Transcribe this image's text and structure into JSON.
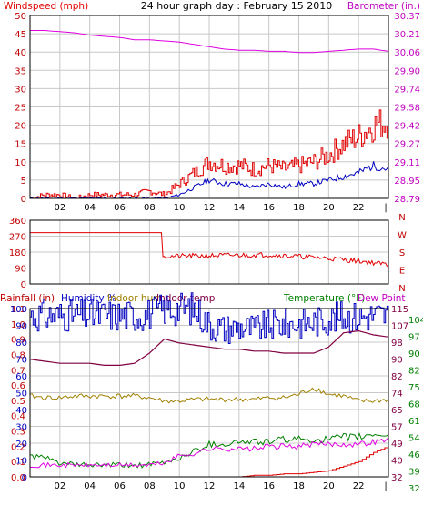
{
  "title": "24 hour graph day : February 15 2010",
  "colors": {
    "wind": "#e00000",
    "gust": "#e00000",
    "avg": "#0000c0",
    "baro": "#e000e0",
    "dir": "#e00000",
    "rain": "#e00000",
    "humidity": "#0000c0",
    "indoor_hum": "#a08000",
    "indoor_temp": "#800040",
    "temperature": "#008000",
    "dew": "#e000e0",
    "frame": "#000000",
    "grid": "#c8c8c8",
    "label_red": "#e00000",
    "label_blue": "#0000c0",
    "label_purple": "#c000c0",
    "label_green": "#008000",
    "label_olive": "#a08000",
    "label_maroon": "#800040",
    "label_darkred": "#c00000"
  },
  "x_ticks": [
    "02",
    "04",
    "06",
    "08",
    "10",
    "12",
    "14",
    "16",
    "18",
    "20",
    "22",
    "|"
  ],
  "chart_data": [
    {
      "type": "line",
      "name": "wind-barometer",
      "left_label": "Windspeed (mph)",
      "right_label": "Barometer (in.)",
      "left_ticks": [
        "50",
        "45",
        "40",
        "35",
        "30",
        "25",
        "20",
        "15",
        "10",
        "5",
        "0"
      ],
      "right_ticks": [
        "30.37",
        "30.21",
        "30.06",
        "29.90",
        "29.74",
        "29.58",
        "29.42",
        "29.27",
        "29.11",
        "28.95",
        "28.79"
      ],
      "ylim": [
        0,
        50
      ],
      "y2lim": [
        28.79,
        30.37
      ],
      "x": [
        0,
        1,
        2,
        3,
        4,
        5,
        6,
        7,
        8,
        9,
        10,
        11,
        12,
        13,
        14,
        15,
        16,
        17,
        18,
        19,
        20,
        21,
        22,
        23,
        24
      ],
      "gust": [
        0,
        1,
        1,
        0,
        1,
        1,
        1,
        1,
        2,
        1,
        4,
        7,
        10,
        9,
        9,
        8,
        9,
        8,
        9,
        10,
        12,
        15,
        17,
        20,
        21
      ],
      "avg": [
        0,
        0,
        0,
        0,
        0,
        0,
        0,
        0,
        0,
        0,
        1,
        3,
        5,
        4,
        4,
        3,
        4,
        3,
        4,
        4,
        5,
        6,
        7,
        9,
        8
      ],
      "barometer": [
        30.24,
        30.24,
        30.23,
        30.22,
        30.2,
        30.19,
        30.18,
        30.16,
        30.16,
        30.15,
        30.14,
        30.12,
        30.1,
        30.08,
        30.07,
        30.07,
        30.06,
        30.06,
        30.05,
        30.05,
        30.06,
        30.07,
        30.08,
        30.08,
        30.06
      ]
    },
    {
      "type": "line",
      "name": "wind-direction",
      "left_ticks": [
        "360",
        "270",
        "180",
        "90",
        "0"
      ],
      "right_ticks": [
        "N",
        "W",
        "S",
        "E",
        "N"
      ],
      "ylim": [
        0,
        360
      ],
      "x": [
        0,
        4,
        8.85,
        8.9,
        12,
        16,
        20,
        22,
        24
      ],
      "direction": [
        290,
        290,
        290,
        155,
        160,
        165,
        145,
        130,
        110
      ]
    },
    {
      "type": "line",
      "name": "temperature-humidity-rain",
      "rain_label": "Rainfall (in)",
      "humidity_label": "Humidity %",
      "indoor_hum_label": "Indoor hum",
      "indoor_temp_label": "Indoor temp",
      "temp_label": "Temperature (°F)",
      "dew_label": "Dew Point",
      "rain_ticks": [
        "1.1",
        "1.0",
        "0.9",
        "0.8",
        "0.7",
        "0.6",
        "0.5",
        "0.4",
        "0.3",
        "0.2",
        "0.1",
        "0.0"
      ],
      "humidity_ticks": [
        "100",
        "90",
        "80",
        "70",
        "60",
        "50",
        "40",
        "30",
        "20",
        "10",
        "0"
      ],
      "right_maroon_ticks": [
        "115",
        "107",
        "98",
        "90",
        "82",
        "74",
        "65",
        "57",
        "49",
        "40",
        "32"
      ],
      "right_green_ticks": [
        "104",
        "97",
        "90",
        "82",
        "75",
        "68",
        "61",
        "54",
        "46",
        "39",
        "32"
      ],
      "x": [
        0,
        1,
        2,
        3,
        4,
        5,
        6,
        7,
        8,
        9,
        10,
        11,
        12,
        13,
        14,
        15,
        16,
        17,
        18,
        19,
        20,
        21,
        22,
        23,
        24
      ],
      "humidity": [
        96,
        96,
        96,
        96,
        96,
        96,
        96,
        96,
        97,
        100,
        100,
        100,
        90,
        88,
        89,
        88,
        90,
        91,
        91,
        92,
        94,
        95,
        95,
        96,
        96
      ],
      "indoor_hum": [
        48,
        47,
        47,
        48,
        48,
        48,
        48,
        48,
        47,
        45,
        45,
        46,
        46,
        46,
        46,
        46,
        47,
        47,
        49,
        53,
        49,
        48,
        45,
        45,
        46
      ],
      "indoor_temp": [
        90,
        89,
        88,
        88,
        88,
        87,
        87,
        88,
        93,
        100,
        98,
        97,
        96,
        95,
        95,
        94,
        94,
        93,
        93,
        93,
        96,
        103,
        104,
        102,
        101
      ],
      "temperature": [
        41,
        40,
        38,
        37,
        37,
        37,
        37,
        37,
        37,
        38,
        40,
        43,
        46,
        46,
        47,
        47,
        47,
        48,
        48,
        48,
        48,
        49,
        49,
        50,
        50
      ],
      "dew": [
        37,
        37,
        37,
        37,
        37,
        37,
        37,
        37,
        37,
        38,
        41,
        42,
        44,
        44,
        44,
        44,
        45,
        45,
        45,
        46,
        46,
        46,
        46,
        47,
        48
      ],
      "rainfall": [
        0,
        0,
        0,
        0,
        0,
        0,
        0,
        0,
        0,
        0,
        0,
        0,
        0,
        0,
        0,
        0.01,
        0.01,
        0.02,
        0.02,
        0.03,
        0.04,
        0.07,
        0.1,
        0.16,
        0.2
      ]
    }
  ]
}
